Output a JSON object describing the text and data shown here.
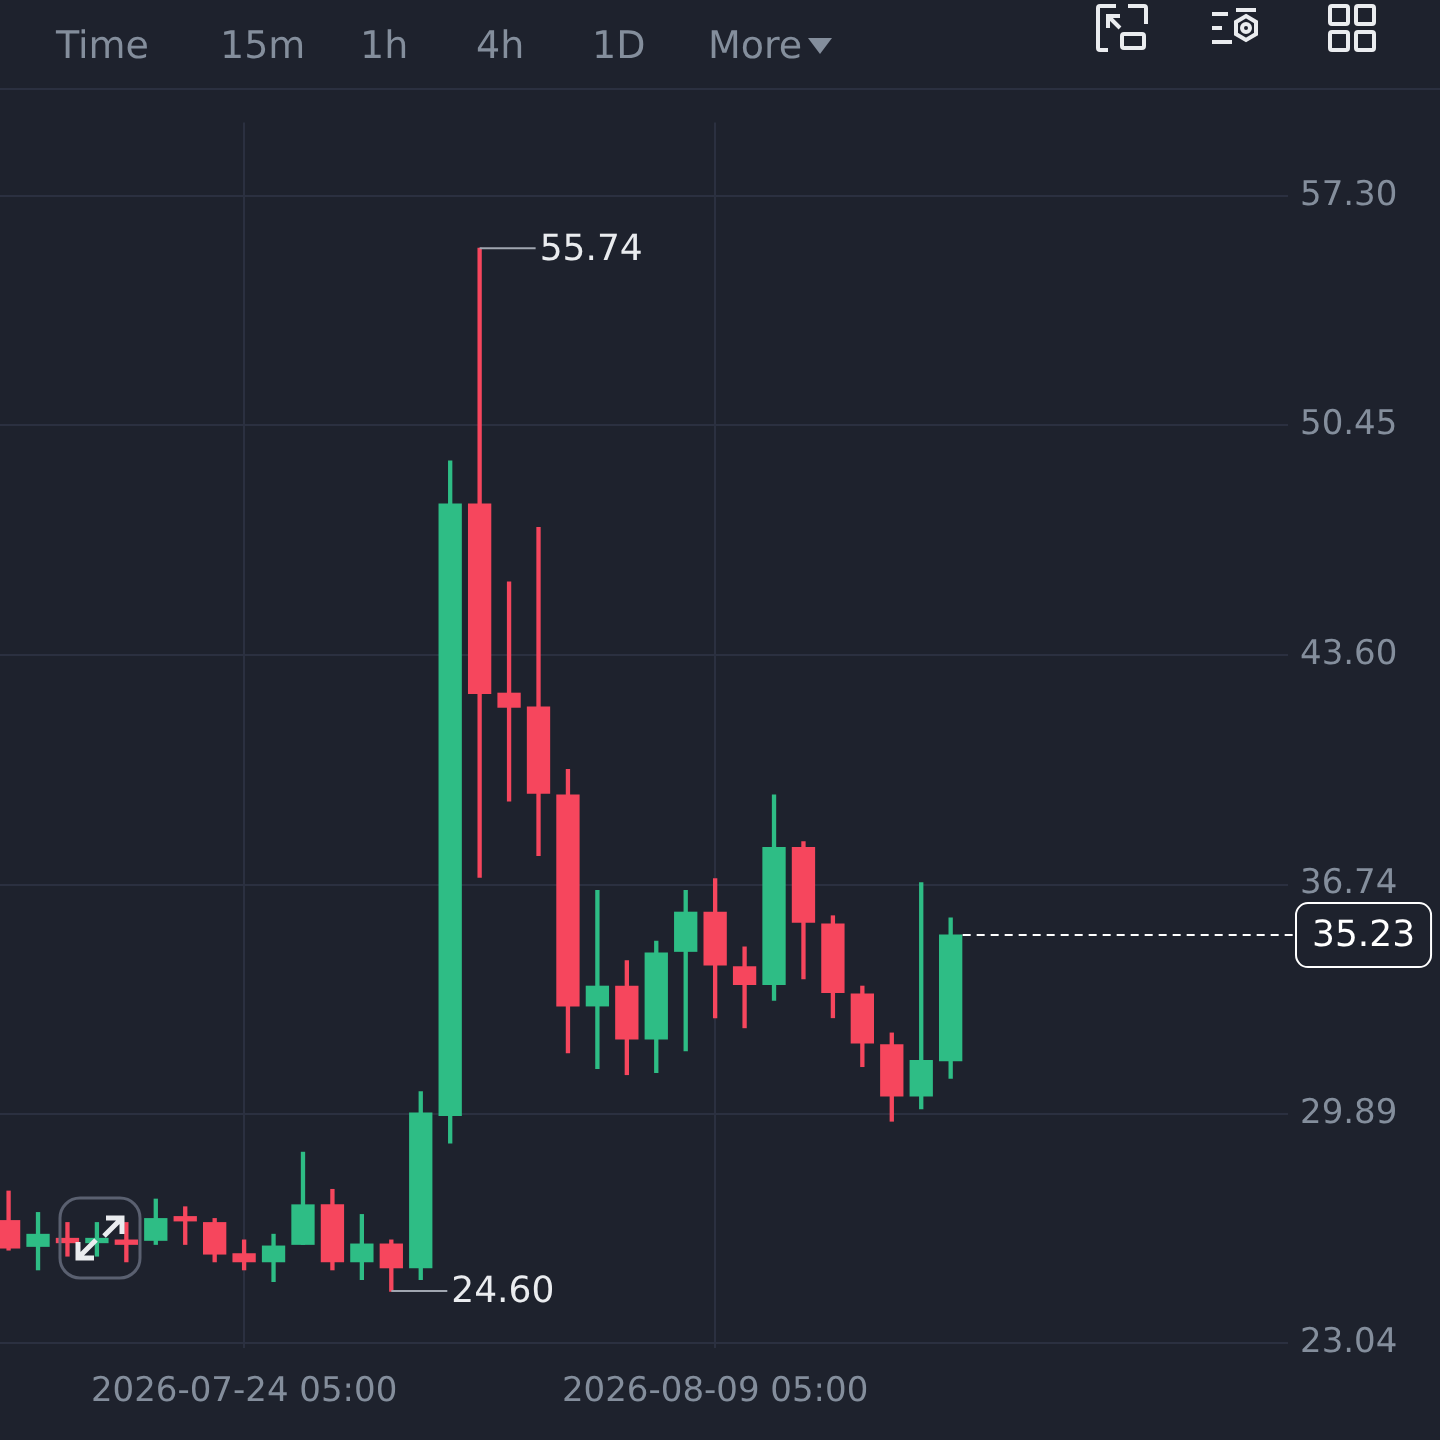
{
  "chart_data": {
    "type": "candlestick",
    "x": [
      "2026-07-16T05:00",
      "2026-07-17T05:00",
      "2026-07-18T05:00",
      "2026-07-19T05:00",
      "2026-07-20T05:00",
      "2026-07-21T05:00",
      "2026-07-22T05:00",
      "2026-07-23T05:00",
      "2026-07-24T05:00",
      "2026-07-25T05:00",
      "2026-07-26T05:00",
      "2026-07-27T05:00",
      "2026-07-28T05:00",
      "2026-07-29T05:00",
      "2026-07-30T05:00",
      "2026-07-31T05:00",
      "2026-08-01T05:00",
      "2026-08-02T05:00",
      "2026-08-03T05:00",
      "2026-08-04T05:00",
      "2026-08-05T05:00",
      "2026-08-06T05:00",
      "2026-08-07T05:00",
      "2026-08-08T05:00",
      "2026-08-09T05:00",
      "2026-08-10T05:00",
      "2026-08-11T05:00",
      "2026-08-12T05:00",
      "2026-08-13T05:00",
      "2026-08-14T05:00",
      "2026-08-15T05:00",
      "2026-08-16T05:00",
      "2026-08-17T05:00"
    ],
    "ohlc": [
      [
        26.7,
        27.58,
        25.83,
        25.89
      ],
      [
        25.94,
        26.94,
        25.24,
        26.29
      ],
      [
        26.12,
        26.64,
        25.65,
        26.05
      ],
      [
        26.05,
        26.64,
        25.65,
        26.12
      ],
      [
        26.12,
        26.64,
        25.48,
        26.0
      ],
      [
        26.12,
        27.34,
        26.0,
        26.76
      ],
      [
        26.76,
        27.11,
        26.0,
        26.7
      ],
      [
        26.64,
        26.76,
        25.48,
        25.71
      ],
      [
        25.71,
        26.12,
        25.24,
        25.48
      ],
      [
        25.48,
        26.29,
        24.89,
        25.94
      ],
      [
        26.0,
        28.74,
        26.0,
        27.17
      ],
      [
        27.17,
        27.63,
        25.24,
        25.48
      ],
      [
        25.48,
        26.88,
        24.95,
        26.0
      ],
      [
        26.0,
        26.12,
        24.6,
        25.3
      ],
      [
        25.3,
        30.55,
        24.95,
        29.91
      ],
      [
        29.85,
        49.38,
        29.03,
        48.1
      ],
      [
        48.1,
        55.74,
        36.96,
        42.45
      ],
      [
        42.45,
        45.77,
        39.24,
        42.04
      ],
      [
        42.04,
        47.4,
        37.61,
        39.47
      ],
      [
        39.41,
        40.17,
        31.72,
        33.12
      ],
      [
        33.12,
        36.56,
        31.25,
        33.7
      ],
      [
        33.7,
        34.46,
        31.07,
        32.13
      ],
      [
        32.13,
        35.04,
        31.13,
        34.69
      ],
      [
        34.75,
        36.56,
        31.78,
        35.91
      ],
      [
        35.91,
        36.91,
        32.77,
        34.34
      ],
      [
        34.28,
        34.87,
        32.47,
        33.76
      ],
      [
        33.76,
        39.41,
        33.29,
        37.84
      ],
      [
        37.84,
        38.01,
        33.93,
        35.62
      ],
      [
        35.56,
        35.8,
        32.77,
        33.52
      ],
      [
        33.47,
        33.7,
        31.31,
        32.01
      ],
      [
        31.95,
        32.3,
        29.68,
        30.43
      ],
      [
        30.43,
        36.79,
        30.05,
        31.48
      ],
      [
        31.48,
        35.74,
        30.96,
        35.23
      ]
    ],
    "colors": [
      "#f6465d",
      "#2ebd85",
      "#f6465d",
      "#2ebd85",
      "#f6465d",
      "#2ebd85",
      "#f6465d",
      "#f6465d",
      "#f6465d",
      "#2ebd85",
      "#2ebd85",
      "#f6465d",
      "#2ebd85",
      "#f6465d",
      "#2ebd85",
      "#2ebd85",
      "#f6465d",
      "#f6465d",
      "#f6465d",
      "#f6465d",
      "#2ebd85",
      "#f6465d",
      "#2ebd85",
      "#2ebd85",
      "#f6465d",
      "#f6465d",
      "#2ebd85",
      "#f6465d",
      "#f6465d",
      "#f6465d",
      "#f6465d",
      "#2ebd85",
      "#2ebd85"
    ],
    "xlim": [
      "2026-07-15T22:00",
      "2026-08-28T16:00"
    ],
    "xticks": [
      {
        "value": "2026-07-24T05:00",
        "label": "2026-07-24 05:00"
      },
      {
        "value": "2026-08-09T05:00",
        "label": "2026-08-09 05:00"
      }
    ],
    "ylim": [
      22.9,
      59.5
    ],
    "yticks": [
      {
        "value": 23.04,
        "label": "23.04"
      },
      {
        "value": 29.89,
        "label": "29.89"
      },
      {
        "value": 36.74,
        "label": "36.74"
      },
      {
        "value": 43.6,
        "label": "43.60"
      },
      {
        "value": 50.45,
        "label": "50.45"
      },
      {
        "value": 57.3,
        "label": "57.30"
      }
    ],
    "grid": true,
    "legend": false,
    "ref_lines": [
      {
        "axis": "y",
        "value": 35.23,
        "label": "35.23",
        "line_style": "dashed",
        "color": "#ffffff"
      }
    ],
    "annotations": [
      {
        "text": "55.74",
        "x": "2026-08-01T05:00",
        "y": 55.74
      },
      {
        "text": "24.60",
        "x": "2026-07-29T05:00",
        "y": 24.6
      },
      "Time",
      "15m",
      "1h",
      "4h",
      "1D",
      "More"
    ]
  }
}
